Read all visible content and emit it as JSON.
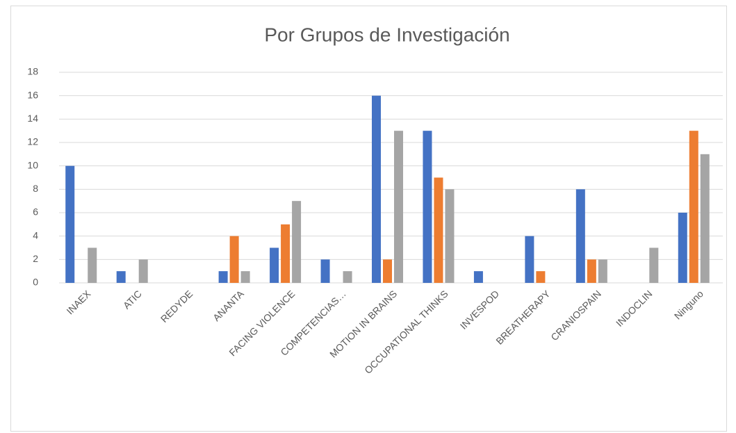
{
  "chart_data": {
    "type": "bar",
    "title": "Por Grupos de Investigación",
    "categories": [
      "INAEX",
      "ATIC",
      "REDYDE",
      "ANANTA",
      "FACING VIOLENCE",
      "COMPETENCIAS…",
      "MOTION IN BRAINS",
      "OCCUPATIONAL THINKS",
      "INVESPOD",
      "BREATHERAPY",
      "CRANIOSPAIN",
      "INDOCLIN",
      "Ninguno"
    ],
    "series": [
      {
        "color": "#4472c4",
        "values": [
          10,
          1,
          0,
          1,
          3,
          2,
          16,
          13,
          1,
          4,
          8,
          0,
          6
        ]
      },
      {
        "color": "#ed7d31",
        "values": [
          0,
          0,
          0,
          4,
          5,
          0,
          2,
          9,
          0,
          1,
          2,
          0,
          13
        ]
      },
      {
        "color": "#a5a5a5",
        "values": [
          3,
          2,
          0,
          1,
          7,
          1,
          13,
          8,
          0,
          0,
          2,
          3,
          11
        ]
      }
    ],
    "ylim": [
      0,
      18
    ],
    "yticks": [
      0,
      2,
      4,
      6,
      8,
      10,
      12,
      14,
      16,
      18
    ],
    "grid": true
  }
}
